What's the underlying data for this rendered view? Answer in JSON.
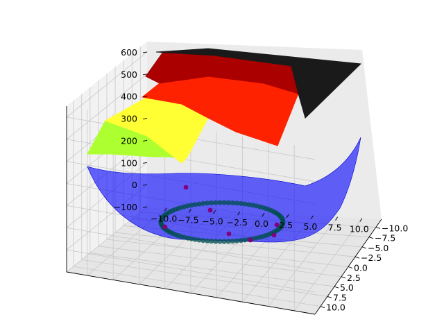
{
  "chart_data": {
    "type": "surface3d",
    "title": "",
    "xlabel": "",
    "ylabel": "",
    "zlabel": "",
    "grid": true,
    "view": {
      "elev": 20,
      "azim": -70
    },
    "xlim": [
      -12,
      12
    ],
    "ylim": [
      -12,
      12
    ],
    "zlim": [
      -100,
      650
    ],
    "x_ticks": [
      -10.0,
      -7.5,
      -5.0,
      -2.5,
      0.0,
      2.5,
      5.0,
      7.5,
      10.0
    ],
    "x_tick_labels": [
      "−10.0",
      "−7.5",
      "−5.0",
      "−2.5",
      "0.0",
      "2.5",
      "5.0",
      "7.5",
      "10.0"
    ],
    "y_ticks": [
      -10.0,
      -7.5,
      -5.0,
      -2.5,
      0.0,
      2.5,
      5.0,
      7.5,
      10.0
    ],
    "y_tick_labels": [
      "−10.0",
      "−7.5",
      "−5.0",
      "−2.5",
      "0.0",
      "2.5",
      "5.0",
      "7.5",
      "10.0"
    ],
    "z_ticks": [
      -100,
      0,
      100,
      200,
      300,
      400,
      500,
      600
    ],
    "z_tick_labels": [
      "−100",
      "0",
      "100",
      "200",
      "300",
      "400",
      "500",
      "600"
    ],
    "series": [
      {
        "type": "surface",
        "colormap": "jet/hot (stepped)",
        "description_range_z": [
          400,
          650
        ],
        "color_low": "#adff2f",
        "color_high": "#111111"
      },
      {
        "type": "surface",
        "color": "#0000ff",
        "alpha": 0.6,
        "z_min_approx": 0,
        "z_max_approx": 500
      },
      {
        "type": "ring-markers",
        "color": "#004d4d",
        "radius_approx": 8,
        "z_approx": 0
      },
      {
        "type": "scatter",
        "color": "#800080",
        "points": [
          {
            "x": -1.5,
            "y": -8.0,
            "z": 150
          },
          {
            "x": 2.0,
            "y": -2.5,
            "z": 60
          },
          {
            "x": -4.0,
            "y": 6.0,
            "z": 10
          },
          {
            "x": 4.0,
            "y": 1.0,
            "z": 10
          },
          {
            "x": 5.5,
            "y": 6.0,
            "z": 5
          },
          {
            "x": 9.0,
            "y": -1.0,
            "z": 20
          },
          {
            "x": 8.5,
            "y": 0.5,
            "z": 10
          }
        ]
      }
    ]
  }
}
